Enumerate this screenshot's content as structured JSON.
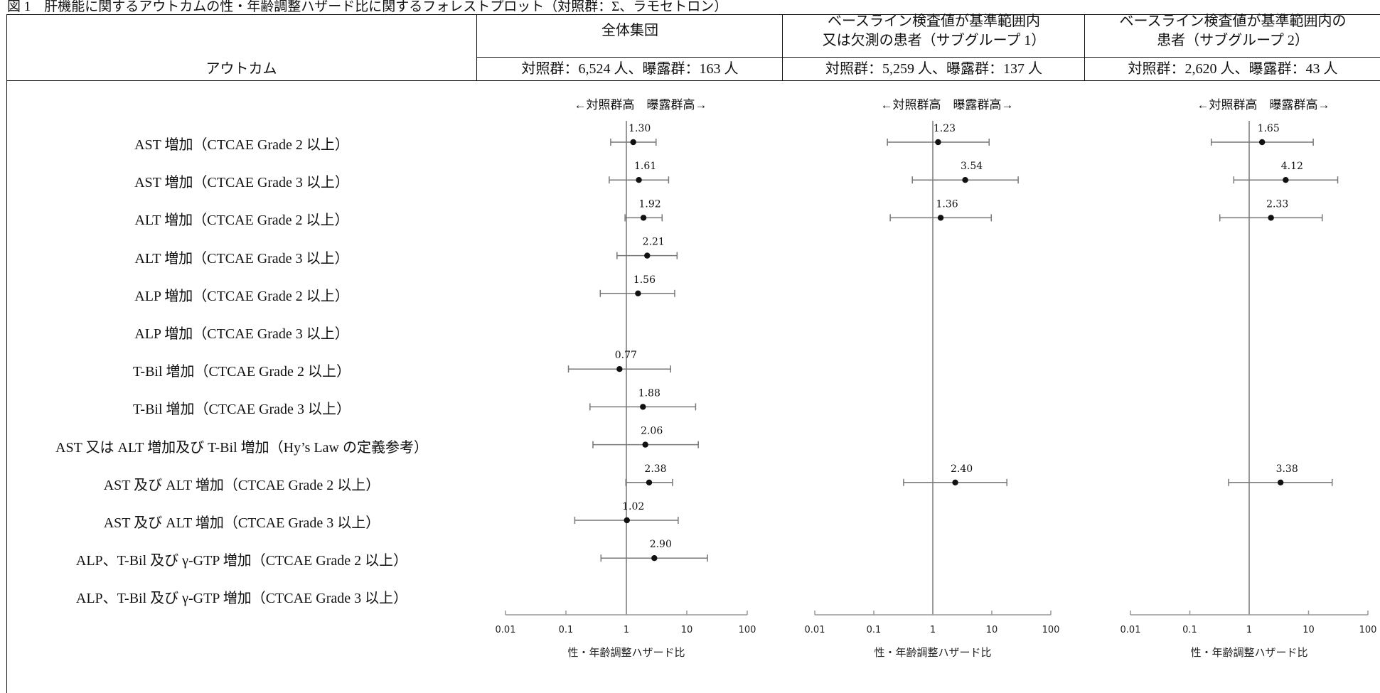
{
  "caption": "図 1　肝機能に関するアウトカムの性・年齢調整ハザード比に関するフォレストプロット（対照群：Σ、ラモセトロン）",
  "outcome_header": "アウトカム",
  "panels": [
    {
      "title_line1": "全体集団",
      "title_line2": "",
      "counts": "対照群：6,524 人、曝露群：163 人"
    },
    {
      "title_line1": "ベースライン検査値が基準範囲内",
      "title_line2": "又は欠測の患者（サブグループ 1）",
      "counts": "対照群：5,259 人、曝露群：137 人"
    },
    {
      "title_line1": "ベースライン検査値が基準範囲内の",
      "title_line2": "患者（サブグループ 2）",
      "counts": "対照群：2,620 人、曝露群：43 人"
    }
  ],
  "outcomes": [
    "AST 増加（CTCAE Grade 2 以上）",
    "AST 増加（CTCAE Grade 3 以上）",
    "ALT 増加（CTCAE Grade 2 以上）",
    "ALT 増加（CTCAE Grade 3 以上）",
    "ALP 増加（CTCAE Grade 2 以上）",
    "ALP 増加（CTCAE Grade 3 以上）",
    "T-Bil 増加（CTCAE Grade 2 以上）",
    "T-Bil 増加（CTCAE Grade 3 以上）",
    "AST 又は ALT 増加及び T-Bil 増加（Hy’s Law の定義参考）",
    "AST 及び ALT 増加（CTCAE Grade 2 以上）",
    "AST 及び ALT 増加（CTCAE Grade 3 以上）",
    "ALP、T-Bil 及び γ-GTP 増加（CTCAE Grade 2 以上）",
    "ALP、T-Bil 及び γ-GTP 増加（CTCAE Grade 3 以上）"
  ],
  "chart_data": [
    {
      "type": "scatter",
      "scale": "log",
      "xlim": [
        0.01,
        100
      ],
      "xticks": [
        "0.01",
        "0.1",
        "1",
        "10",
        "100"
      ],
      "reference_line": 1,
      "direction_label": "←対照群高　曝露群高→",
      "xlabel": "性・年齢調整ハザード比",
      "points": [
        {
          "row": 0,
          "value": 1.3,
          "label": "1.30",
          "lower": 0.55,
          "upper": 3.1
        },
        {
          "row": 1,
          "value": 1.61,
          "label": "1.61",
          "lower": 0.52,
          "upper": 5.0
        },
        {
          "row": 2,
          "value": 1.92,
          "label": "1.92",
          "lower": 0.95,
          "upper": 3.9
        },
        {
          "row": 3,
          "value": 2.21,
          "label": "2.21",
          "lower": 0.7,
          "upper": 6.9
        },
        {
          "row": 4,
          "value": 1.56,
          "label": "1.56",
          "lower": 0.37,
          "upper": 6.3
        },
        {
          "row": 6,
          "value": 0.77,
          "label": "0.77",
          "lower": 0.11,
          "upper": 5.4
        },
        {
          "row": 7,
          "value": 1.88,
          "label": "1.88",
          "lower": 0.25,
          "upper": 14
        },
        {
          "row": 8,
          "value": 2.06,
          "label": "2.06",
          "lower": 0.28,
          "upper": 15.5
        },
        {
          "row": 9,
          "value": 2.38,
          "label": "2.38",
          "lower": 0.98,
          "upper": 5.8
        },
        {
          "row": 10,
          "value": 1.02,
          "label": "1.02",
          "lower": 0.14,
          "upper": 7.2
        },
        {
          "row": 11,
          "value": 2.9,
          "label": "2.90",
          "lower": 0.38,
          "upper": 22
        }
      ]
    },
    {
      "type": "scatter",
      "scale": "log",
      "xlim": [
        0.01,
        100
      ],
      "xticks": [
        "0.01",
        "0.1",
        "1",
        "10",
        "100"
      ],
      "reference_line": 1,
      "direction_label": "←対照群高　曝露群高→",
      "xlabel": "性・年齢調整ハザード比",
      "points": [
        {
          "row": 0,
          "value": 1.23,
          "label": "1.23",
          "lower": 0.17,
          "upper": 9
        },
        {
          "row": 1,
          "value": 3.54,
          "label": "3.54",
          "lower": 0.45,
          "upper": 28
        },
        {
          "row": 2,
          "value": 1.36,
          "label": "1.36",
          "lower": 0.19,
          "upper": 9.8
        },
        {
          "row": 9,
          "value": 2.4,
          "label": "2.40",
          "lower": 0.32,
          "upper": 18
        }
      ]
    },
    {
      "type": "scatter",
      "scale": "log",
      "xlim": [
        0.01,
        100
      ],
      "xticks": [
        "0.01",
        "0.1",
        "1",
        "10",
        "100"
      ],
      "reference_line": 1,
      "direction_label": "←対照群高　曝露群高→",
      "xlabel": "性・年齢調整ハザード比",
      "points": [
        {
          "row": 0,
          "value": 1.65,
          "label": "1.65",
          "lower": 0.23,
          "upper": 12
        },
        {
          "row": 1,
          "value": 4.12,
          "label": "4.12",
          "lower": 0.55,
          "upper": 31
        },
        {
          "row": 2,
          "value": 2.33,
          "label": "2.33",
          "lower": 0.32,
          "upper": 17
        },
        {
          "row": 9,
          "value": 3.38,
          "label": "3.38",
          "lower": 0.45,
          "upper": 25
        }
      ]
    }
  ]
}
